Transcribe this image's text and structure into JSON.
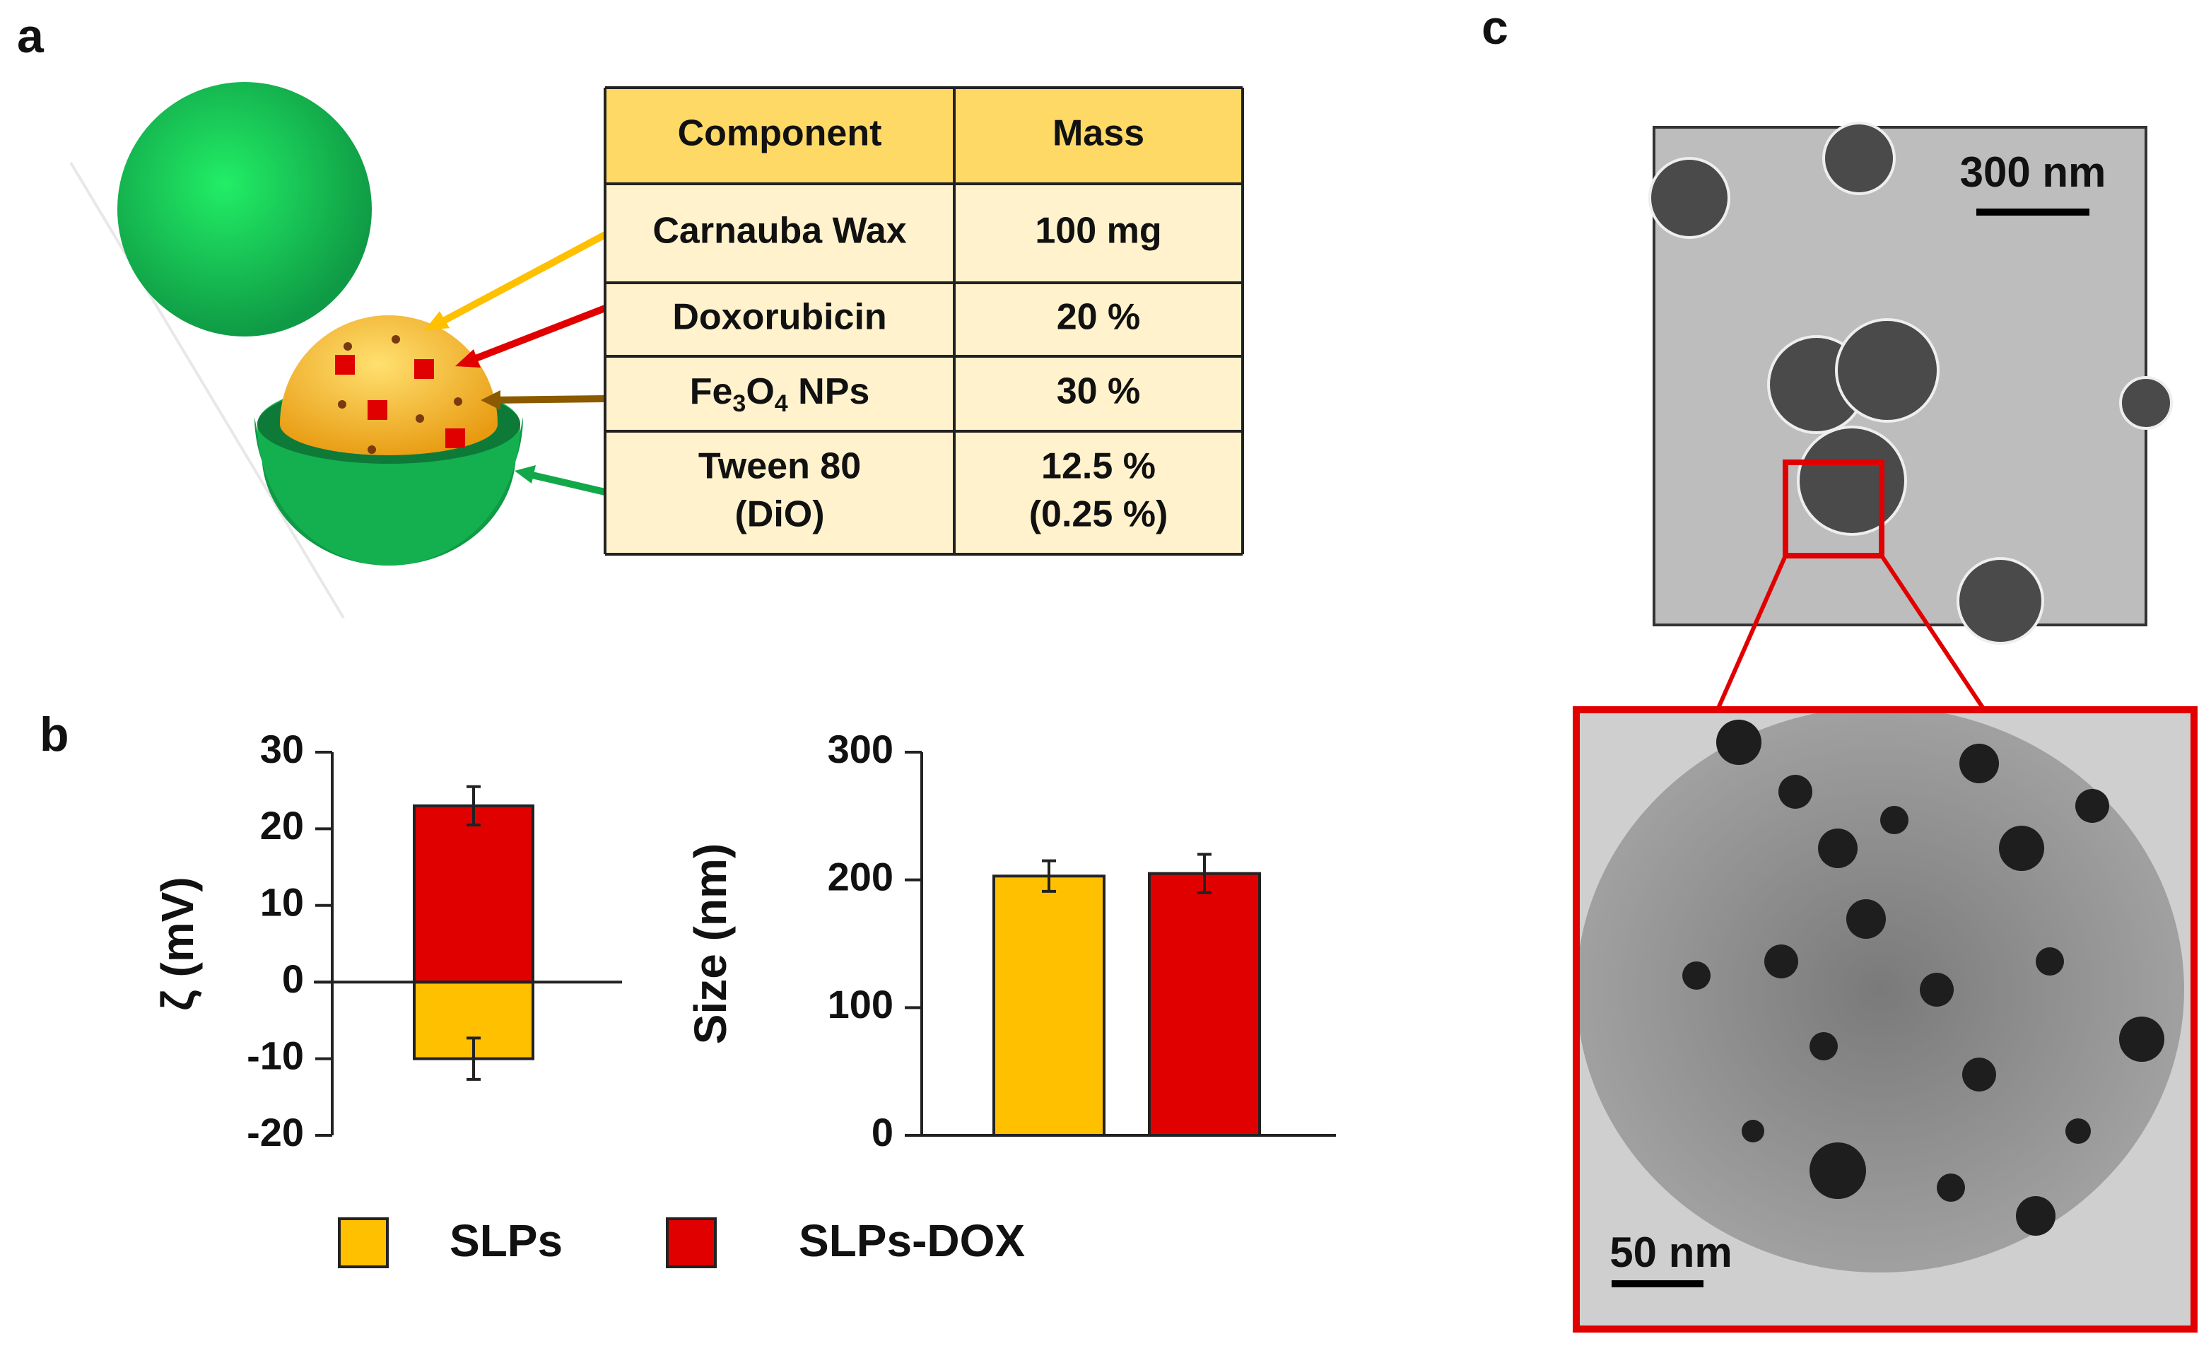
{
  "panel_labels": [
    "a",
    "b",
    "c"
  ],
  "table": {
    "header": [
      "Component",
      "Mass"
    ],
    "rows": [
      [
        [
          "Carnauba Wax"
        ],
        [
          "100 mg"
        ]
      ],
      [
        [
          "Doxorubicin"
        ],
        [
          "20 %"
        ]
      ],
      [
        [
          "Fe",
          "3",
          "O",
          "4",
          " NPs"
        ],
        [
          "30 %"
        ]
      ],
      [
        [
          "Tween 80",
          "(DiO)"
        ],
        [
          "12.5 %",
          "(0.25 %)"
        ]
      ]
    ]
  },
  "legend": [
    {
      "name": "SLPs",
      "color": "#ffc000"
    },
    {
      "name": "SLPs-DOX",
      "color": "#e00000"
    }
  ],
  "chart_data": [
    {
      "type": "bar",
      "bar_layout": "overlaid",
      "y_label": "ζ (mV)",
      "categories": [
        null
      ],
      "series": [
        {
          "color": "#ffc000",
          "values": [
            -10
          ],
          "errors": [
            2.7
          ]
        },
        {
          "color": "#e00000",
          "values": [
            23
          ],
          "errors": [
            2.5
          ]
        }
      ],
      "ylim": [
        -20,
        30
      ],
      "yticks": [
        -20,
        -10,
        0,
        10,
        20,
        30
      ]
    },
    {
      "type": "bar",
      "bar_layout": "grouped",
      "y_label": "Size (nm)",
      "categories": [
        null
      ],
      "series": [
        {
          "color": "#ffc000",
          "values": [
            203
          ],
          "errors": [
            12
          ]
        },
        {
          "color": "#e00000",
          "values": [
            205
          ],
          "errors": [
            15
          ]
        }
      ],
      "ylim": [
        0,
        300
      ],
      "yticks": [
        0,
        100,
        200,
        300
      ]
    }
  ],
  "scale_bars": [
    "300 nm",
    "50 nm"
  ]
}
